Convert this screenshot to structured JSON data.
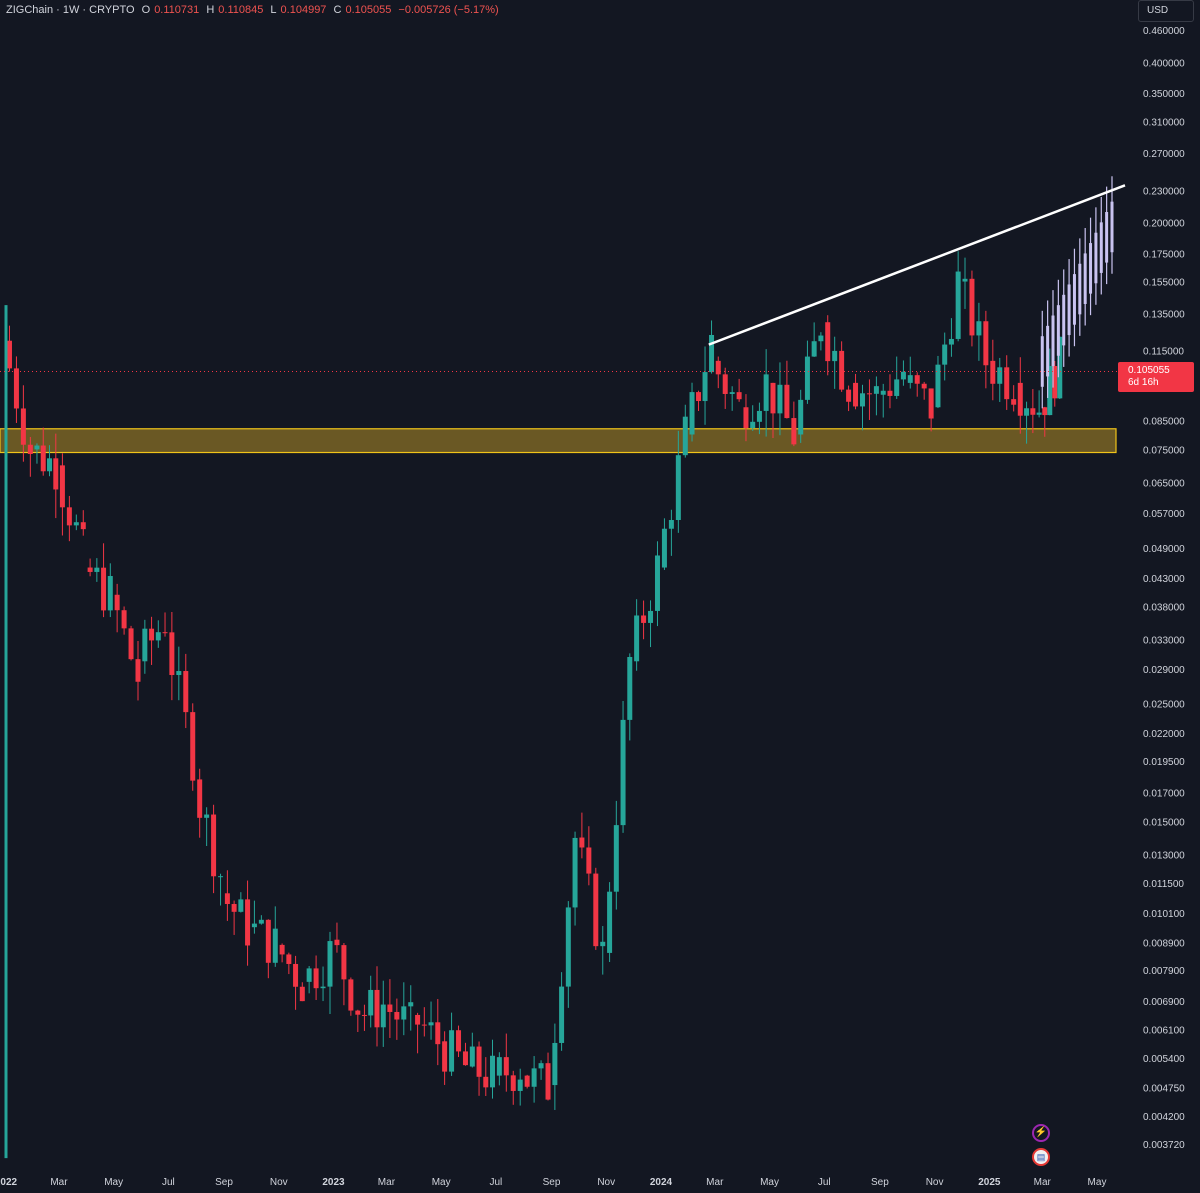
{
  "header": {
    "symbol": "ZIGChain · 1W · CRYPTO",
    "open_label": "O",
    "open": "0.110731",
    "high_label": "H",
    "high": "0.110845",
    "low_label": "L",
    "low": "0.104997",
    "close_label": "C",
    "close": "0.105055",
    "change": "−0.005726 (−5.17%)"
  },
  "currency_button": "USD",
  "last_price": {
    "value": "0.105055",
    "countdown": "6d 16h"
  },
  "colors": {
    "background": "#131722",
    "up": "#26a69a",
    "down": "#f23645",
    "projection": "#c9c3f0",
    "zone_fill": "#7a6425",
    "zone_border": "#f0c419",
    "trendline": "#ffffff",
    "text": "#d1d4dc"
  },
  "icons": {
    "alert": "lightning-icon",
    "flag": "us-flag-icon"
  },
  "chart_data": {
    "type": "candlestick",
    "scale": "log",
    "interval": "1W",
    "currency": "USD",
    "y_ticks": [
      "0.460000",
      "0.400000",
      "0.350000",
      "0.310000",
      "0.270000",
      "0.230000",
      "0.200000",
      "0.175000",
      "0.155000",
      "0.135000",
      "0.115000",
      "0.085000",
      "0.075000",
      "0.065000",
      "0.057000",
      "0.049000",
      "0.043000",
      "0.038000",
      "0.033000",
      "0.029000",
      "0.025000",
      "0.022000",
      "0.019500",
      "0.017000",
      "0.015000",
      "0.013000",
      "0.011500",
      "0.010100",
      "0.008900",
      "0.007900",
      "0.006900",
      "0.006100",
      "0.005400",
      "0.004750",
      "0.004200",
      "0.003720"
    ],
    "x_ticks": [
      "2022",
      "Mar",
      "May",
      "Jul",
      "Sep",
      "Nov",
      "2023",
      "Mar",
      "May",
      "Jul",
      "Sep",
      "Nov",
      "2024",
      "Mar",
      "May",
      "Jul",
      "Sep",
      "Nov",
      "2025",
      "Mar",
      "May"
    ],
    "x_start": "2022-01-01",
    "x_end": "2025-06-01",
    "bars_approx": [
      [
        "2022-01",
        0.12,
        0.075
      ],
      [
        "2022-02",
        0.075,
        0.07
      ],
      [
        "2022-03",
        0.07,
        0.048
      ],
      [
        "2022-04",
        0.045,
        0.04
      ],
      [
        "2022-05",
        0.04,
        0.028
      ],
      [
        "2022-06",
        0.03,
        0.036
      ],
      [
        "2022-07",
        0.034,
        0.02
      ],
      [
        "2022-08",
        0.018,
        0.012
      ],
      [
        "2022-09",
        0.011,
        0.0095
      ],
      [
        "2022-10",
        0.0095,
        0.0088
      ],
      [
        "2022-11",
        0.0088,
        0.0075
      ],
      [
        "2022-12",
        0.0075,
        0.0085
      ],
      [
        "2023-01",
        0.009,
        0.0068
      ],
      [
        "2023-02",
        0.0065,
        0.0068
      ],
      [
        "2023-03",
        0.0068,
        0.0062
      ],
      [
        "2023-04",
        0.0065,
        0.0058
      ],
      [
        "2023-05",
        0.0058,
        0.0052
      ],
      [
        "2023-06",
        0.0052,
        0.005
      ],
      [
        "2023-07",
        0.005,
        0.0052
      ],
      [
        "2023-08",
        0.005,
        0.0048
      ],
      [
        "2023-09",
        0.0048,
        0.014
      ],
      [
        "2023-10",
        0.014,
        0.0085
      ],
      [
        "2023-11",
        0.0085,
        0.03
      ],
      [
        "2023-12",
        0.03,
        0.045
      ],
      [
        "2024-01",
        0.045,
        0.08
      ],
      [
        "2024-02",
        0.08,
        0.12
      ],
      [
        "2024-03",
        0.11,
        0.09
      ],
      [
        "2024-04",
        0.09,
        0.1
      ],
      [
        "2024-05",
        0.1,
        0.08
      ],
      [
        "2024-06",
        0.08,
        0.13
      ],
      [
        "2024-07",
        0.13,
        0.1
      ],
      [
        "2024-08",
        0.1,
        0.095
      ],
      [
        "2024-09",
        0.095,
        0.105
      ],
      [
        "2024-10",
        0.1,
        0.09
      ],
      [
        "2024-11",
        0.09,
        0.155
      ],
      [
        "2024-12",
        0.155,
        0.11
      ],
      [
        "2025-01",
        0.11,
        0.1
      ],
      [
        "2025-02",
        0.1,
        0.09
      ],
      [
        "2025-03",
        0.09,
        0.11
      ]
    ],
    "support_zone": {
      "low": 0.074,
      "high": 0.082
    },
    "trendline": {
      "from": [
        "2024-02",
        0.118
      ],
      "to": [
        "2025-05",
        0.235
      ]
    },
    "projection_range": {
      "from": "2025-03",
      "to": "2025-05",
      "low": 0.095,
      "high": 0.23
    },
    "last_close": 0.105055
  }
}
